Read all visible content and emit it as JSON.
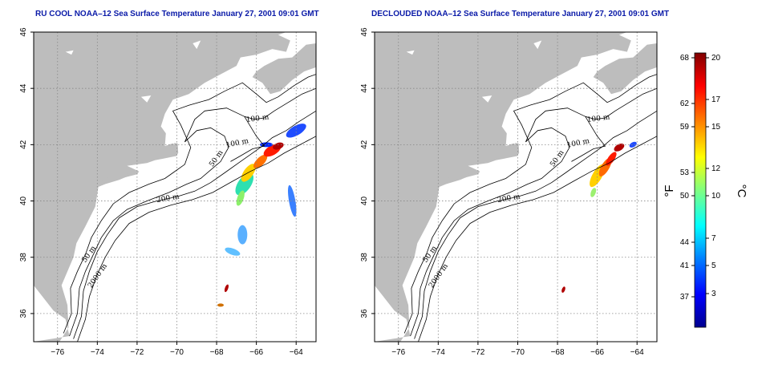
{
  "panels": [
    {
      "id": "left",
      "title": "RU COOL NOAA–12 Sea Surface Temperature January 27, 2001 09:01 GMT",
      "contour_labels": [
        "100 m",
        "100 m",
        "50 m",
        "200 m",
        "50 m",
        "2000 m"
      ]
    },
    {
      "id": "right",
      "title": "DECLOUDED NOAA–12 Sea Surface Temperature January 27, 2001 09:01 GMT",
      "contour_labels": [
        "100 m",
        "100 m",
        "50 m",
        "200 m",
        "50 m",
        "2000 m"
      ]
    }
  ],
  "axes": {
    "x_ticks": [
      "−76",
      "−74",
      "−72",
      "−70",
      "−68",
      "−66",
      "−64"
    ],
    "y_ticks": [
      "36",
      "38",
      "40",
      "42",
      "44",
      "46"
    ],
    "lon_range": [
      -77.2,
      -63
    ],
    "lat_range": [
      35,
      46
    ],
    "grid": "dotted"
  },
  "colorbar": {
    "fahrenheit_ticks": [
      "68",
      "62",
      "59",
      "53",
      "50",
      "44",
      "41",
      "37"
    ],
    "celsius_ticks": [
      "20",
      "17",
      "15",
      "12",
      "10",
      "7",
      "5",
      "3"
    ],
    "fahrenheit_unit": "°F",
    "celsius_unit": "°C",
    "colors": [
      "#00008f",
      "#0000ff",
      "#0080ff",
      "#00ffff",
      "#80ff80",
      "#ffff00",
      "#ff8000",
      "#ff0000",
      "#800000"
    ]
  },
  "colors": {
    "land": "#bdbdbd",
    "title": "#0a1aa8",
    "contour": "#000000"
  }
}
